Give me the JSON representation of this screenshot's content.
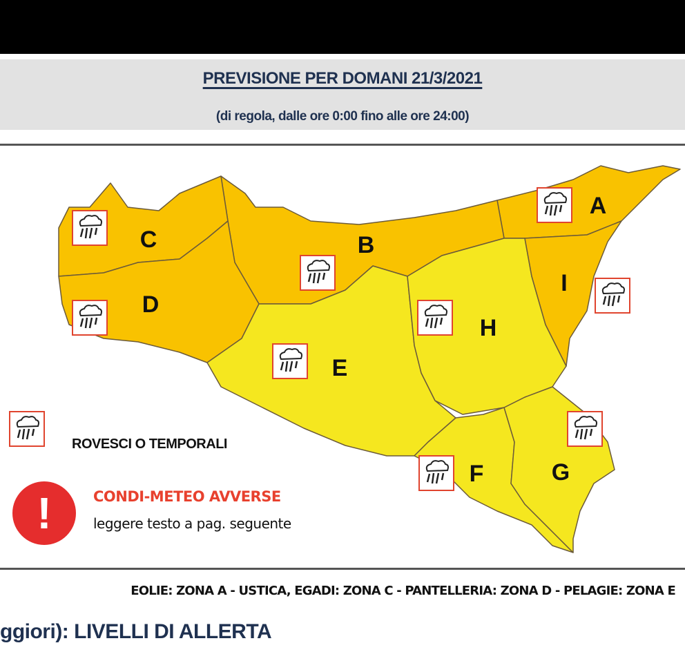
{
  "header": {
    "title": "PREVISIONE PER DOMANI 21/3/2021",
    "subtitle": "(di regola, dalle ore 0:00 fino alle ore 24:00)"
  },
  "map": {
    "colors": {
      "orange": "#f9c200",
      "yellow": "#f5e71f",
      "border": "#6b5a3a",
      "icon_border": "#e0442e"
    },
    "zones": [
      {
        "id": "A",
        "label": "A",
        "level_color": "#f9c200",
        "icon": "thunderstorm-icon"
      },
      {
        "id": "B",
        "label": "B",
        "level_color": "#f9c200",
        "icon": "thunderstorm-icon"
      },
      {
        "id": "C",
        "label": "C",
        "level_color": "#f9c200",
        "icon": "thunderstorm-icon"
      },
      {
        "id": "D",
        "label": "D",
        "level_color": "#f9c200",
        "icon": "thunderstorm-icon"
      },
      {
        "id": "E",
        "label": "E",
        "level_color": "#f5e71f",
        "icon": "thunderstorm-icon"
      },
      {
        "id": "F",
        "label": "F",
        "level_color": "#f5e71f",
        "icon": "thunderstorm-icon"
      },
      {
        "id": "G",
        "label": "G",
        "level_color": "#f5e71f",
        "icon": "thunderstorm-icon"
      },
      {
        "id": "H",
        "label": "H",
        "level_color": "#f5e71f",
        "icon": "thunderstorm-icon"
      },
      {
        "id": "I",
        "label": "I",
        "level_color": "#f9c200",
        "icon": "thunderstorm-icon"
      }
    ]
  },
  "legend": {
    "storm_label": "ROVESCI O TEMPORALI",
    "adverse_title": "CONDI-METEO AVVERSE",
    "adverse_sub": "leggere testo a pag. seguente",
    "adverse_icon": "exclamation-icon",
    "adverse_symbol": "!"
  },
  "islands_note": "EOLIE: ZONA A - USTICA, EGADI: ZONA C - PANTELLERIA: ZONA D - PELAGIE: ZONA E",
  "next_heading": "ggiori): LIVELLI DI ALLERTA"
}
